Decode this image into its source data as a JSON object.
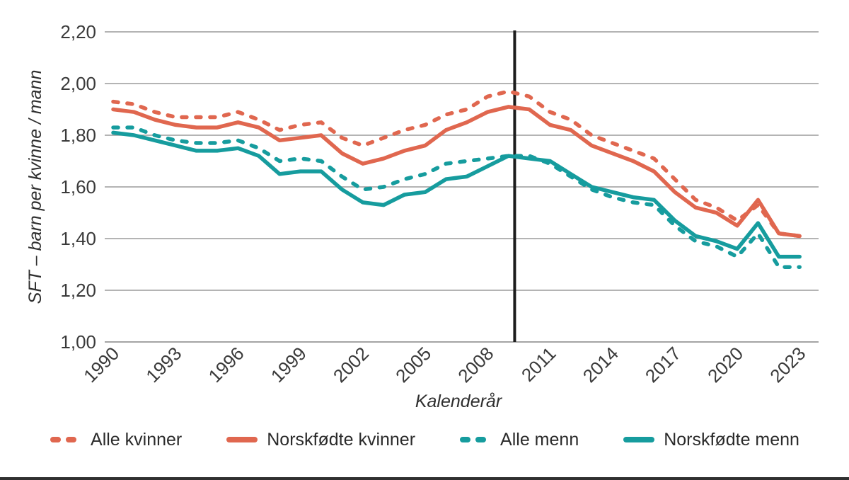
{
  "page": {
    "background": "#ffffff",
    "bottom_bar_color": "#303030"
  },
  "chart_data": {
    "type": "line",
    "title": "",
    "ylabel": "SFT – barn per kvinne / mann",
    "xlabel": "Kalenderår",
    "ylim": [
      1.0,
      2.2
    ],
    "grid": true,
    "grid_color": "#9b9b9b",
    "reference_line_year": 2009.3,
    "reference_line_color": "#1c1c1c",
    "legend_position": "bottom",
    "y_ticks": [
      {
        "label": "2,20",
        "value": 2.2
      },
      {
        "label": "2,00",
        "value": 2.0
      },
      {
        "label": "1,80",
        "value": 1.8
      },
      {
        "label": "1,60",
        "value": 1.6
      },
      {
        "label": "1,40",
        "value": 1.4
      },
      {
        "label": "1,20",
        "value": 1.2
      },
      {
        "label": "1,00",
        "value": 1.0
      }
    ],
    "x_ticks": [
      {
        "label": "1990",
        "value": 1990
      },
      {
        "label": "1993",
        "value": 1993
      },
      {
        "label": "1996",
        "value": 1996
      },
      {
        "label": "1999",
        "value": 1999
      },
      {
        "label": "2002",
        "value": 2002
      },
      {
        "label": "2005",
        "value": 2005
      },
      {
        "label": "2008",
        "value": 2008
      },
      {
        "label": "2011",
        "value": 2011
      },
      {
        "label": "2014",
        "value": 2014
      },
      {
        "label": "2017",
        "value": 2017
      },
      {
        "label": "2020",
        "value": 2020
      },
      {
        "label": "2023",
        "value": 2023
      }
    ],
    "years": [
      1990,
      1991,
      1992,
      1993,
      1994,
      1995,
      1996,
      1997,
      1998,
      1999,
      2000,
      2001,
      2002,
      2003,
      2004,
      2005,
      2006,
      2007,
      2008,
      2009,
      2010,
      2011,
      2012,
      2013,
      2014,
      2015,
      2016,
      2017,
      2018,
      2019,
      2020,
      2021,
      2022,
      2023
    ],
    "series": [
      {
        "name": "Alle kvinner",
        "style": "dashed",
        "color": "#E0674F",
        "values": [
          1.93,
          1.92,
          1.89,
          1.87,
          1.87,
          1.87,
          1.89,
          1.86,
          1.82,
          1.84,
          1.85,
          1.79,
          1.76,
          1.79,
          1.82,
          1.84,
          1.88,
          1.9,
          1.95,
          1.97,
          1.95,
          1.89,
          1.86,
          1.8,
          1.77,
          1.74,
          1.71,
          1.63,
          1.55,
          1.52,
          1.47,
          1.53,
          1.42,
          1.41
        ]
      },
      {
        "name": "Norskfødte kvinner",
        "style": "solid",
        "color": "#E0674F",
        "values": [
          1.9,
          1.89,
          1.86,
          1.84,
          1.83,
          1.83,
          1.85,
          1.83,
          1.78,
          1.79,
          1.8,
          1.73,
          1.69,
          1.71,
          1.74,
          1.76,
          1.82,
          1.85,
          1.89,
          1.91,
          1.9,
          1.84,
          1.82,
          1.76,
          1.73,
          1.7,
          1.66,
          1.58,
          1.52,
          1.5,
          1.45,
          1.55,
          1.42,
          1.41
        ]
      },
      {
        "name": "Alle menn",
        "style": "dashed",
        "color": "#169C9E",
        "values": [
          1.83,
          1.83,
          1.8,
          1.78,
          1.77,
          1.77,
          1.78,
          1.75,
          1.7,
          1.71,
          1.7,
          1.64,
          1.59,
          1.6,
          1.63,
          1.65,
          1.69,
          1.7,
          1.71,
          1.72,
          1.72,
          1.69,
          1.64,
          1.59,
          1.56,
          1.54,
          1.53,
          1.45,
          1.39,
          1.37,
          1.33,
          1.42,
          1.29,
          1.29
        ]
      },
      {
        "name": "Norskfødte menn",
        "style": "solid",
        "color": "#169C9E",
        "values": [
          1.81,
          1.8,
          1.78,
          1.76,
          1.74,
          1.74,
          1.75,
          1.72,
          1.65,
          1.66,
          1.66,
          1.59,
          1.54,
          1.53,
          1.57,
          1.58,
          1.63,
          1.64,
          1.68,
          1.72,
          1.71,
          1.7,
          1.65,
          1.6,
          1.58,
          1.56,
          1.55,
          1.47,
          1.41,
          1.39,
          1.36,
          1.46,
          1.33,
          1.33
        ]
      }
    ]
  }
}
